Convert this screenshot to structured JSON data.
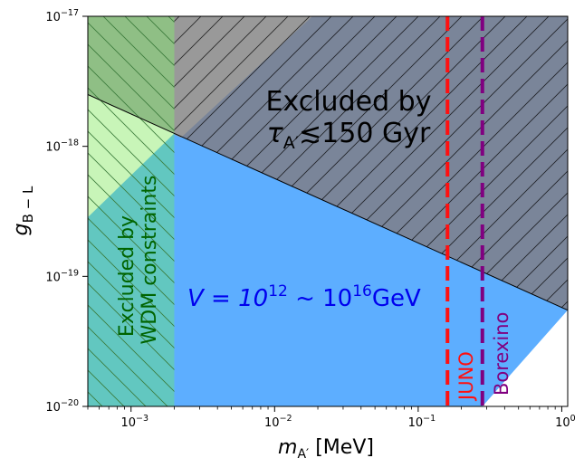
{
  "chart_data": {
    "type": "area",
    "xscale": "log",
    "yscale": "log",
    "xlim": [
      0.0005,
      1.1
    ],
    "ylim": [
      1e-20,
      1e-17
    ],
    "xlabel": {
      "base": "m",
      "sub": "A′",
      "unit": " [MeV]"
    },
    "ylabel": {
      "base": "g",
      "sub": "B − L"
    },
    "x_ticks": [
      {
        "value": 0.001,
        "base": "10",
        "exp": "−3"
      },
      {
        "value": 0.01,
        "base": "10",
        "exp": "−2"
      },
      {
        "value": 0.1,
        "base": "10",
        "exp": "−1"
      },
      {
        "value": 1,
        "base": "10",
        "exp": "0"
      }
    ],
    "y_ticks": [
      {
        "value": 1e-20,
        "base": "10",
        "exp": "−20"
      },
      {
        "value": 1e-19,
        "base": "10",
        "exp": "−19"
      },
      {
        "value": 1e-18,
        "base": "10",
        "exp": "−18"
      },
      {
        "value": 1e-17,
        "base": "10",
        "exp": "−17"
      }
    ],
    "regions": [
      {
        "id": "lifetime",
        "label_line1": "Excluded by",
        "label_line2": {
          "base": "τ",
          "sub": "A′",
          "rest": "≲150 Gyr"
        },
        "color": "#7a8599",
        "hatch": "/",
        "boundary_line": {
          "x1": 0.0005,
          "y1": 2.5e-18,
          "x2": 1.1,
          "y2": 5.5e-20
        }
      },
      {
        "id": "vev-band",
        "label": {
          "prefix": "V = 10",
          "exp1": "12",
          "mid": " ~ 10",
          "exp2": "16",
          "unit": "GeV"
        },
        "color": "#5daeff",
        "lower_line": {
          "x1": 0.28,
          "y1": 1e-20,
          "x2": 1.1,
          "y2": 5.5e-20
        }
      },
      {
        "id": "wdm",
        "label_line1": "Excluded by",
        "label_line2": "WDM constraints",
        "color": "#55b855",
        "text_color": "#006400",
        "hatch": "\\",
        "x_max": 0.002
      }
    ],
    "lines": [
      {
        "name": "JUNO",
        "x": 0.16,
        "color": "#ff1010",
        "style": "dashed"
      },
      {
        "name": "Borexino",
        "x": 0.28,
        "color": "#800080",
        "style": "dashed"
      }
    ],
    "grid": false
  }
}
